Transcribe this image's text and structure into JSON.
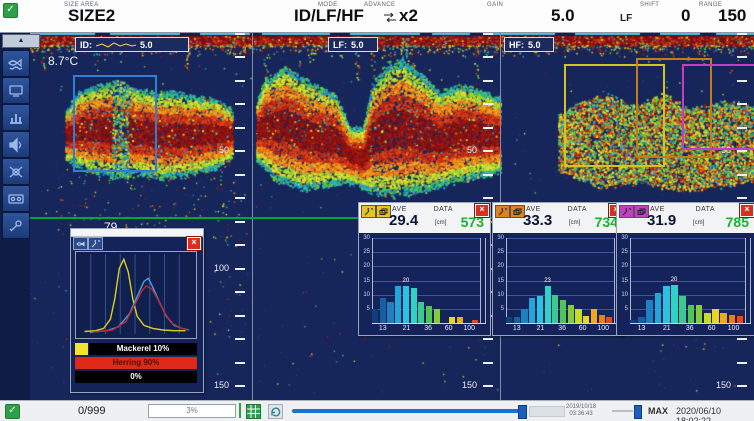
{
  "top_bar": {
    "size_area_label": "SIZE AREA",
    "size_area_value": "SIZE2",
    "mode_label": "MODE",
    "mode_value": "ID/LF/HF",
    "advance_label": "ADVANCE",
    "advance_value": "x2",
    "gain_label": "GAIN",
    "gain_value": "5.0",
    "gain_channel": "LF",
    "shift_label": "SHIFT",
    "shift_value": "0",
    "range_label": "RANGE",
    "range_value": "150"
  },
  "panes": {
    "id_label": "ID:",
    "id_gain": "5.0",
    "lf_label": "LF:",
    "lf_gain": "5.0",
    "hf_label": "HF:",
    "hf_gain": "5.0",
    "temperature": "8.7°C",
    "depth_line_label": "79",
    "depth_tick_labels": {
      "0": "0",
      "5": "50",
      "10": "100",
      "15": "150"
    }
  },
  "species_window": {
    "legend": [
      {
        "label": "Mackerel 10%",
        "swatch": "#f2e42c",
        "bg": "#000000",
        "fg": "#ffffff"
      },
      {
        "label": "Herring 90%",
        "bg": "#e02818",
        "fg": "#4a100a"
      },
      {
        "label": "0%",
        "bg": "#000000",
        "fg": "#ffffff"
      }
    ]
  },
  "ave_windows": [
    {
      "accent": "#e6c51e",
      "ave_label": "AVE",
      "ave_value": "29.4",
      "unit": "[cm]",
      "data_label": "DATA",
      "data_value": "573"
    },
    {
      "accent": "#e0821c",
      "ave_label": "AVE",
      "ave_value": "33.3",
      "unit": "[cm]",
      "data_label": "DATA",
      "data_value": "734"
    },
    {
      "accent": "#c23ec2",
      "ave_label": "AVE",
      "ave_value": "31.9",
      "unit": "[cm]",
      "data_label": "DATA",
      "data_value": "785"
    }
  ],
  "bottom_bar": {
    "counter": "0/999",
    "progress": "3%",
    "history_date": "2019/10/18",
    "history_time": "03:36:43",
    "max_label": "MAX",
    "timestamp": "2020/06/10 18:02:22"
  },
  "bar_colors": [
    "#0d3f7a",
    "#1460a2",
    "#1f7fc0",
    "#22a6d8",
    "#29c2e2",
    "#2fd2c4",
    "#3cc88e",
    "#52c455",
    "#86cc38",
    "#c4dc2c",
    "#ecd426",
    "#f2a81e",
    "#ee7d14",
    "#e8471a"
  ],
  "chart_data": [
    {
      "type": "bar",
      "title": "fish-length-histogram-ID",
      "ave_cm": 29.4,
      "data_count": 573,
      "peak_label": "20",
      "peak_index": 4,
      "ylim": [
        0,
        30
      ],
      "y_ticks": [
        30,
        25,
        20,
        15,
        10,
        5
      ],
      "x_labels": [
        "13",
        "21",
        "36",
        "60",
        "100"
      ],
      "values": [
        5,
        9,
        7.5,
        13,
        13,
        12.5,
        7.5,
        6,
        5,
        0,
        2,
        2,
        0,
        1
      ]
    },
    {
      "type": "bar",
      "title": "fish-length-histogram-LF",
      "ave_cm": 33.3,
      "data_count": 734,
      "peak_label": "23",
      "peak_index": 5,
      "ylim": [
        0,
        30
      ],
      "y_ticks": [
        30,
        25,
        20,
        15,
        10,
        5
      ],
      "x_labels": [
        "13",
        "21",
        "36",
        "60",
        "100"
      ],
      "values": [
        2,
        2,
        5,
        9,
        9.5,
        13,
        10,
        8,
        6.5,
        5,
        2.5,
        5,
        3,
        2
      ]
    },
    {
      "type": "bar",
      "title": "fish-length-histogram-HF",
      "ave_cm": 31.9,
      "data_count": 785,
      "peak_label": "20",
      "peak_index": 5,
      "ylim": [
        0,
        30
      ],
      "y_ticks": [
        30,
        25,
        20,
        15,
        10,
        5
      ],
      "x_labels": [
        "13",
        "21",
        "36",
        "60",
        "100"
      ],
      "values": [
        1,
        2,
        8,
        10.5,
        13,
        13.5,
        9.5,
        6.5,
        6.5,
        3.5,
        5,
        3.5,
        3,
        2.5
      ]
    },
    {
      "type": "line",
      "title": "species-probability-curves",
      "xlim": [
        0,
        100
      ],
      "ylim": [
        0,
        100
      ],
      "grid": "vertical",
      "series": [
        {
          "name": "mackerel",
          "color": "#d8cf1e",
          "points": [
            [
              5,
              2
            ],
            [
              15,
              3
            ],
            [
              22,
              6
            ],
            [
              28,
              18
            ],
            [
              32,
              45
            ],
            [
              36,
              85
            ],
            [
              40,
              97
            ],
            [
              44,
              80
            ],
            [
              48,
              45
            ],
            [
              52,
              22
            ],
            [
              58,
              10
            ],
            [
              66,
              6
            ],
            [
              75,
              4
            ],
            [
              85,
              3
            ],
            [
              95,
              3
            ]
          ]
        },
        {
          "name": "herring",
          "color": "#46a0e8",
          "points": [
            [
              10,
              1
            ],
            [
              25,
              3
            ],
            [
              35,
              8
            ],
            [
              45,
              25
            ],
            [
              52,
              48
            ],
            [
              58,
              68
            ],
            [
              62,
              72
            ],
            [
              66,
              60
            ],
            [
              72,
              40
            ],
            [
              78,
              22
            ],
            [
              85,
              10
            ],
            [
              92,
              6
            ],
            [
              98,
              4
            ]
          ]
        },
        {
          "name": "other",
          "color": "#c02828",
          "points": [
            [
              12,
              1
            ],
            [
              30,
              4
            ],
            [
              42,
              15
            ],
            [
              50,
              38
            ],
            [
              56,
              55
            ],
            [
              60,
              62
            ],
            [
              65,
              58
            ],
            [
              70,
              45
            ],
            [
              76,
              28
            ],
            [
              82,
              14
            ],
            [
              90,
              7
            ],
            [
              97,
              4
            ]
          ]
        }
      ]
    }
  ]
}
